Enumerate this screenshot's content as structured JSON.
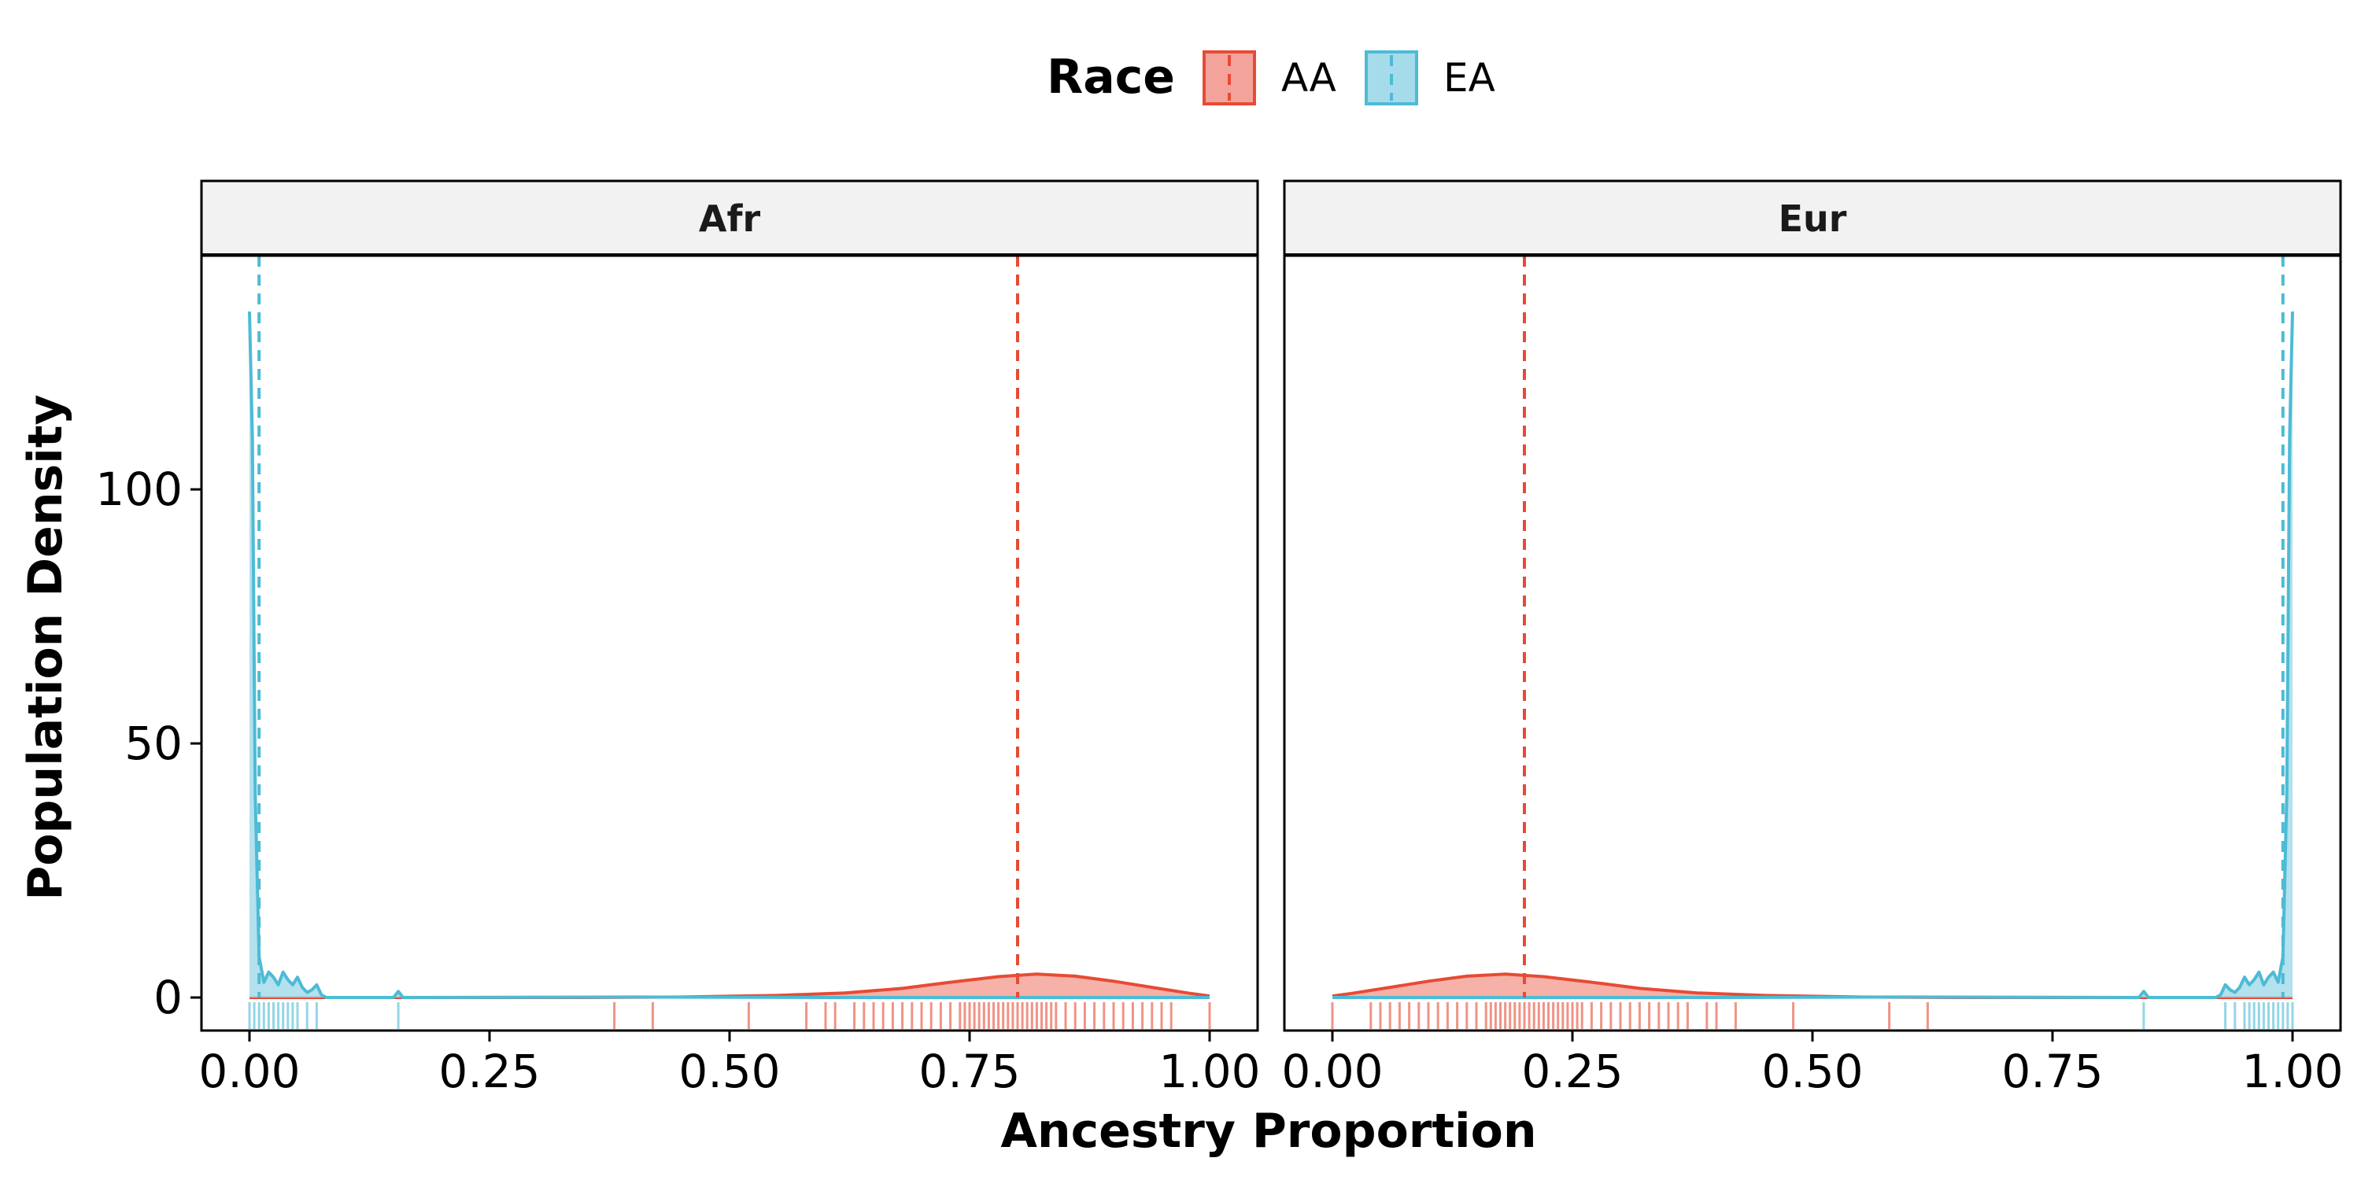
{
  "chart_data": {
    "type": "density",
    "legend": {
      "title": "Race",
      "entries": [
        {
          "label": "AA",
          "color": "#E64B35",
          "fill": "#F4A39A"
        },
        {
          "label": "EA",
          "color": "#4DBBD5",
          "fill": "#A6DCEA"
        }
      ],
      "position": "top"
    },
    "xlabel": "Ancestry Proportion",
    "ylabel": "Population Density",
    "xlim": [
      -0.05,
      1.05
    ],
    "ylim": [
      -6.5,
      146
    ],
    "x_ticks": [
      "0.00",
      "0.25",
      "0.50",
      "0.75",
      "1.00"
    ],
    "x_tick_values": [
      0,
      0.25,
      0.5,
      0.75,
      1.0
    ],
    "y_ticks": [
      "0",
      "50",
      "100"
    ],
    "y_tick_values": [
      0,
      50,
      100
    ],
    "grid": false,
    "facets": [
      {
        "label": "Afr",
        "series": [
          {
            "name": "AA",
            "mean": 0.8,
            "density": [
              [
                0.0,
                0
              ],
              [
                0.35,
                0
              ],
              [
                0.45,
                0.1
              ],
              [
                0.55,
                0.4
              ],
              [
                0.62,
                0.9
              ],
              [
                0.68,
                1.8
              ],
              [
                0.73,
                3.0
              ],
              [
                0.78,
                4.1
              ],
              [
                0.82,
                4.6
              ],
              [
                0.86,
                4.2
              ],
              [
                0.9,
                3.2
              ],
              [
                0.94,
                2.0
              ],
              [
                0.98,
                0.8
              ],
              [
                1.0,
                0.3
              ]
            ],
            "rug": [
              0.38,
              0.42,
              0.52,
              0.58,
              0.6,
              0.61,
              0.63,
              0.64,
              0.65,
              0.66,
              0.67,
              0.68,
              0.69,
              0.7,
              0.71,
              0.72,
              0.73,
              0.74,
              0.745,
              0.75,
              0.755,
              0.76,
              0.765,
              0.77,
              0.775,
              0.78,
              0.785,
              0.79,
              0.795,
              0.8,
              0.805,
              0.81,
              0.815,
              0.82,
              0.825,
              0.83,
              0.835,
              0.84,
              0.85,
              0.86,
              0.87,
              0.88,
              0.89,
              0.9,
              0.91,
              0.92,
              0.93,
              0.94,
              0.95,
              0.96,
              1.0
            ]
          },
          {
            "name": "EA",
            "mean": 0.01,
            "density": [
              [
                0.0,
                135
              ],
              [
                0.003,
                110
              ],
              [
                0.006,
                40
              ],
              [
                0.01,
                8
              ],
              [
                0.015,
                3
              ],
              [
                0.02,
                5
              ],
              [
                0.025,
                4
              ],
              [
                0.03,
                2.5
              ],
              [
                0.035,
                5
              ],
              [
                0.04,
                3.5
              ],
              [
                0.045,
                2.5
              ],
              [
                0.05,
                4
              ],
              [
                0.055,
                2
              ],
              [
                0.06,
                1
              ],
              [
                0.065,
                1.5
              ],
              [
                0.07,
                2.5
              ],
              [
                0.075,
                0.5
              ],
              [
                0.08,
                0
              ],
              [
                0.15,
                0
              ],
              [
                0.155,
                1.2
              ],
              [
                0.16,
                0
              ],
              [
                0.4,
                0.1
              ],
              [
                0.6,
                0
              ],
              [
                1.0,
                0
              ]
            ],
            "rug": [
              0.0,
              0.005,
              0.01,
              0.015,
              0.02,
              0.025,
              0.03,
              0.035,
              0.04,
              0.045,
              0.05,
              0.06,
              0.07,
              0.155
            ]
          }
        ]
      },
      {
        "label": "Eur",
        "series": [
          {
            "name": "AA",
            "mean": 0.2,
            "density": [
              [
                0.0,
                0.3
              ],
              [
                0.02,
                0.8
              ],
              [
                0.06,
                2.0
              ],
              [
                0.1,
                3.2
              ],
              [
                0.14,
                4.2
              ],
              [
                0.18,
                4.6
              ],
              [
                0.22,
                4.1
              ],
              [
                0.27,
                3.0
              ],
              [
                0.32,
                1.8
              ],
              [
                0.38,
                0.9
              ],
              [
                0.45,
                0.4
              ],
              [
                0.55,
                0.1
              ],
              [
                0.65,
                0
              ],
              [
                1.0,
                0
              ]
            ],
            "rug": [
              0.0,
              0.04,
              0.05,
              0.06,
              0.07,
              0.08,
              0.09,
              0.1,
              0.11,
              0.12,
              0.13,
              0.14,
              0.15,
              0.16,
              0.165,
              0.17,
              0.175,
              0.18,
              0.185,
              0.19,
              0.195,
              0.2,
              0.205,
              0.21,
              0.215,
              0.22,
              0.225,
              0.23,
              0.235,
              0.24,
              0.245,
              0.25,
              0.255,
              0.26,
              0.27,
              0.28,
              0.29,
              0.3,
              0.31,
              0.32,
              0.33,
              0.34,
              0.35,
              0.36,
              0.37,
              0.39,
              0.4,
              0.42,
              0.48,
              0.58,
              0.62
            ]
          },
          {
            "name": "EA",
            "mean": 0.99,
            "density": [
              [
                0.0,
                0
              ],
              [
                0.4,
                0
              ],
              [
                0.6,
                0.1
              ],
              [
                0.84,
                0
              ],
              [
                0.845,
                1.2
              ],
              [
                0.85,
                0
              ],
              [
                0.92,
                0
              ],
              [
                0.925,
                0.5
              ],
              [
                0.93,
                2.5
              ],
              [
                0.935,
                1.5
              ],
              [
                0.94,
                1
              ],
              [
                0.945,
                2
              ],
              [
                0.95,
                4
              ],
              [
                0.955,
                2.5
              ],
              [
                0.96,
                3.5
              ],
              [
                0.965,
                5
              ],
              [
                0.97,
                2.5
              ],
              [
                0.975,
                4
              ],
              [
                0.98,
                5
              ],
              [
                0.985,
                3
              ],
              [
                0.99,
                8
              ],
              [
                0.994,
                40
              ],
              [
                0.997,
                110
              ],
              [
                1.0,
                135
              ]
            ],
            "rug": [
              0.845,
              0.93,
              0.94,
              0.95,
              0.955,
              0.96,
              0.965,
              0.97,
              0.975,
              0.98,
              0.985,
              0.99,
              0.995,
              1.0
            ]
          }
        ]
      }
    ]
  }
}
